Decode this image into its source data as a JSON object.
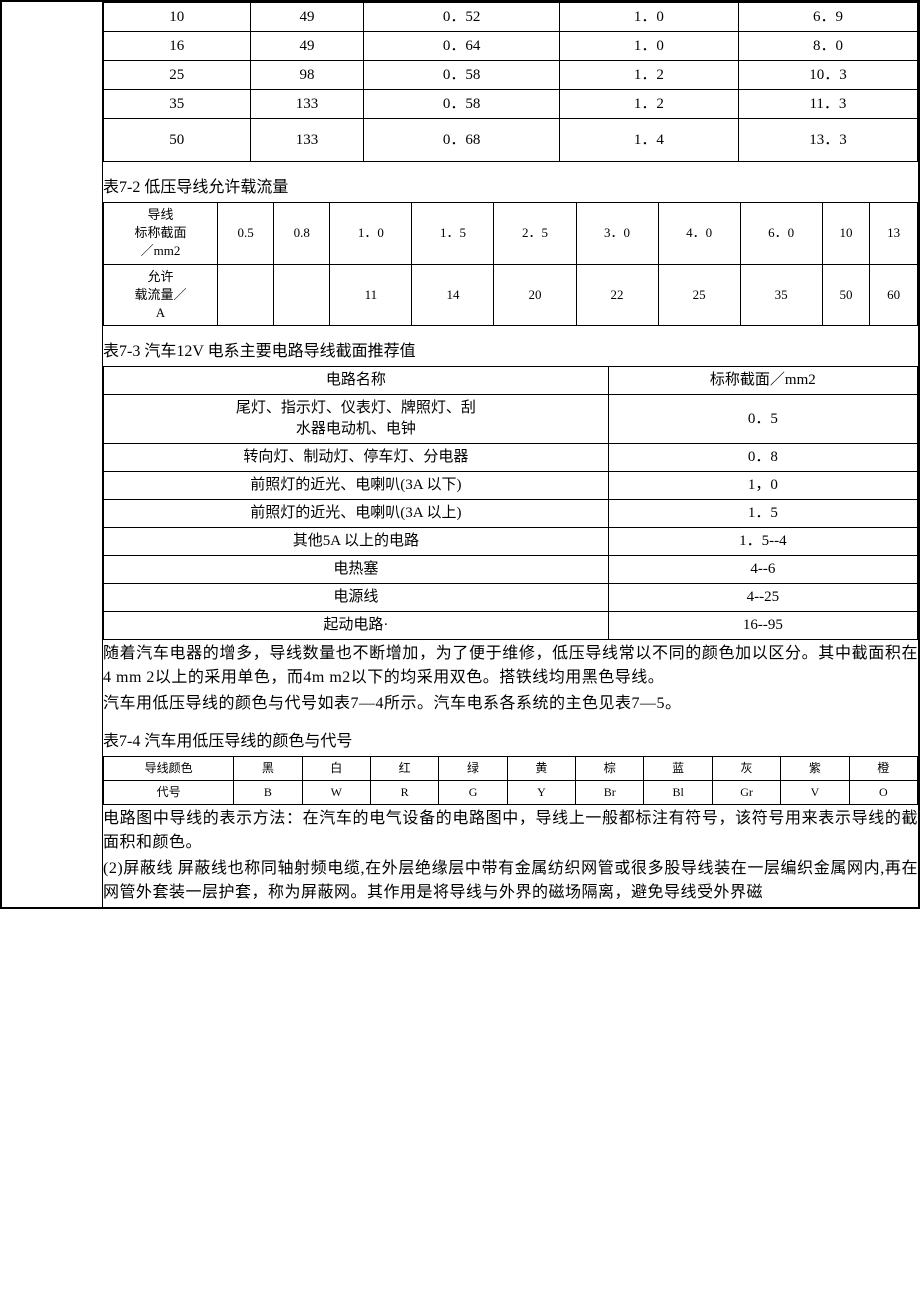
{
  "table1": {
    "type": "table",
    "rows": [
      [
        "10",
        "49",
        "0．52",
        "1．0",
        "6．9"
      ],
      [
        "16",
        "49",
        "0．64",
        "1．0",
        "8．0"
      ],
      [
        "25",
        "98",
        "0．58",
        "1．2",
        "10．3"
      ],
      [
        "35",
        "133",
        "0．58",
        "1．2",
        "11．3"
      ],
      [
        "50",
        "133",
        "0．68",
        "1．4",
        "13．3"
      ]
    ],
    "col_widths_pct": [
      18,
      14,
      24,
      22,
      22
    ]
  },
  "caption2": "表7-2 低压导线允许载流量",
  "table2": {
    "type": "table",
    "header_row": [
      "导线\n标称截面\n／mm2",
      "0.5",
      "0.8",
      "1．0",
      "1．5",
      "2．5",
      "3．0",
      "4．0",
      "6．0",
      "10",
      "13"
    ],
    "data_row": [
      "允许\n载流量／\nA",
      "",
      "",
      "11",
      "14",
      "20",
      "22",
      "25",
      "35",
      "50",
      "60"
    ]
  },
  "caption3": "表7-3 汽车12V 电系主要电路导线截面推荐值",
  "table3": {
    "type": "table",
    "columns": [
      "电路名称",
      "标称截面／mm2"
    ],
    "rows": [
      [
        "尾灯、指示灯、仪表灯、牌照灯、刮\n水器电动机、电钟",
        "0．5"
      ],
      [
        "转向灯、制动灯、停车灯、分电器",
        "0．8"
      ],
      [
        "前照灯的近光、电喇叭(3A 以下)",
        "1，0"
      ],
      [
        "前照灯的近光、电喇叭(3A 以上)",
        "1．5"
      ],
      [
        "其他5A 以上的电路",
        "1．5--4"
      ],
      [
        "电热塞",
        "4--6"
      ],
      [
        "电源线",
        "4--25"
      ],
      [
        "起动电路·",
        "16--95"
      ]
    ],
    "col_widths_pct": [
      62,
      38
    ]
  },
  "para1": "随着汽车电器的增多，导线数量也不断增加，为了便于维修，低压导线常以不同的颜色加以区分。其中截面积在4 mm 2以上的采用单色，而4m m2以下的均采用双色。搭铁线均用黑色导线。",
  "para2": "汽车用低压导线的颜色与代号如表7—4所示。汽车电系各系统的主色见表7—5。",
  "caption4": "表7-4 汽车用低压导线的颜色与代号",
  "table4": {
    "type": "table",
    "rows": [
      [
        "导线颜色",
        "黑",
        "白",
        "红",
        "绿",
        "黄",
        "棕",
        "蓝",
        "灰",
        "紫",
        "橙"
      ],
      [
        "代号",
        "B",
        "W",
        "R",
        "G",
        "Y",
        "Br",
        "Bl",
        "Gr",
        "V",
        "O"
      ]
    ],
    "col_widths_pct": [
      16,
      8.4,
      8.4,
      8.4,
      8.4,
      8.4,
      8.4,
      8.4,
      8.4,
      8.4,
      8.4
    ]
  },
  "para3": "电路图中导线的表示方法：在汽车的电气设备的电路图中，导线上一般都标注有符号，该符号用来表示导线的截面积和颜色。",
  "para4": "(2)屏蔽线 屏蔽线也称同轴射频电缆,在外层绝缘层中带有金属纺织网管或很多股导线装在一层编织金属网内,再在网管外套装一层护套，称为屏蔽网。其作用是将导线与外界的磁场隔离，避免导线受外界磁"
}
